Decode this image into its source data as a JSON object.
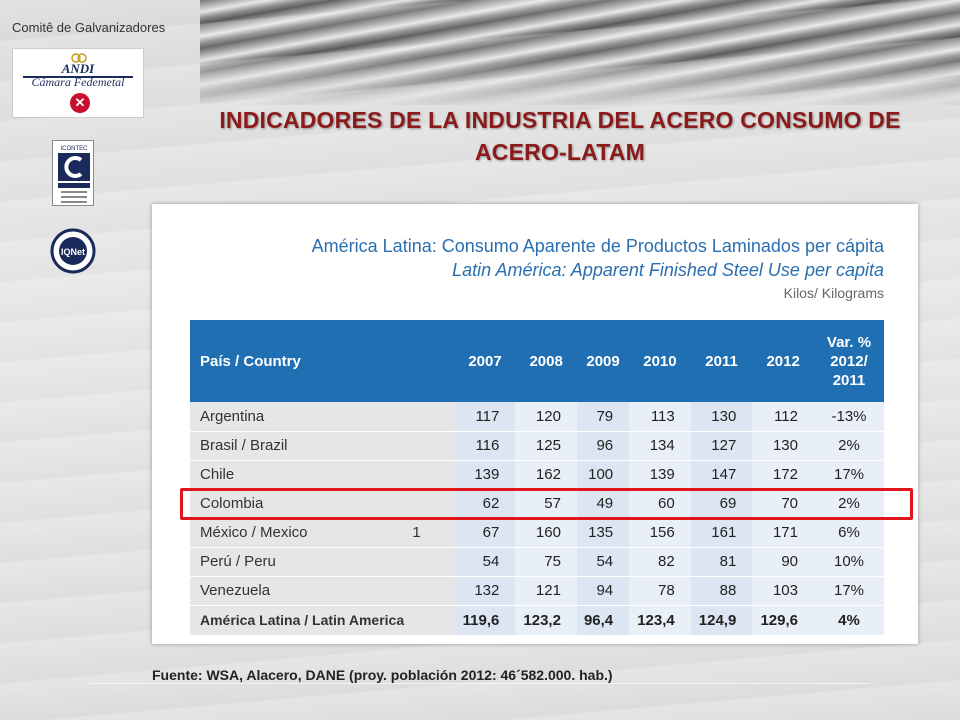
{
  "slide": {
    "title": "INDICADORES DE LA INDUSTRIA DEL ACERO  CONSUMO DE ACERO-LATAM",
    "source_note": "Fuente: WSA, Alacero, DANE (proy. población 2012: 46´582.000. hab.)"
  },
  "logos": {
    "committee_name": "Comitê de Galvanizadores",
    "andi_name": "ANDI",
    "andi_subtitle": "Cámara Fedemetal",
    "icontec_label": "ICONTEC",
    "iqnet_label": "IQNet"
  },
  "table_panel": {
    "title_es": "América Latina: Consumo Aparente de Productos Laminados per cápita",
    "title_en": "Latin América:  Apparent Finished Steel Use per capita",
    "units": "Kilos/ Kilograms",
    "headers": [
      "País / Country",
      "2007",
      "2008",
      "2009",
      "2010",
      "2011",
      "2012",
      "Var. % 2012/ 2011"
    ],
    "rows": [
      {
        "country": "Argentina",
        "note": "",
        "values": [
          "117",
          "120",
          "79",
          "113",
          "130",
          "112"
        ],
        "var": "-13%"
      },
      {
        "country": "Brasil / Brazil",
        "note": "",
        "values": [
          "116",
          "125",
          "96",
          "134",
          "127",
          "130"
        ],
        "var": "2%"
      },
      {
        "country": "Chile",
        "note": "",
        "values": [
          "139",
          "162",
          "100",
          "139",
          "147",
          "172"
        ],
        "var": "17%"
      },
      {
        "country": "Colombia",
        "note": "",
        "values": [
          "62",
          "57",
          "49",
          "60",
          "69",
          "70"
        ],
        "var": "2%"
      },
      {
        "country": "México / Mexico",
        "note": "1",
        "values": [
          "67",
          "160",
          "135",
          "156",
          "161",
          "171"
        ],
        "var": "6%"
      },
      {
        "country": "Perú / Peru",
        "note": "",
        "values": [
          "54",
          "75",
          "54",
          "82",
          "81",
          "90"
        ],
        "var": "10%"
      },
      {
        "country": "Venezuela",
        "note": "",
        "values": [
          "132",
          "121",
          "94",
          "78",
          "88",
          "103"
        ],
        "var": "17%"
      }
    ],
    "total": {
      "country": "América Latina / Latin America",
      "values": [
        "119,6",
        "123,2",
        "96,4",
        "123,4",
        "124,9",
        "129,6"
      ],
      "var": "4%"
    },
    "highlighted_row": "Colombia",
    "highlight_color": "#e0161b",
    "header_color": "#1f6fb2",
    "title_color": "#8b1a1a"
  }
}
